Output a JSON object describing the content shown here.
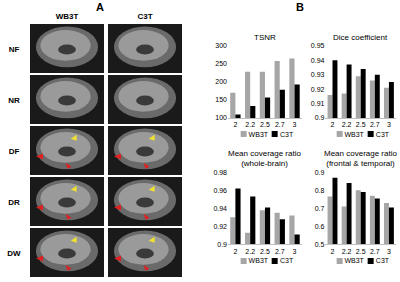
{
  "panels": {
    "A": {
      "label": "A",
      "columns": [
        "WB3T",
        "C3T"
      ],
      "rows": [
        "NF",
        "NR",
        "DF",
        "DR",
        "DW"
      ]
    },
    "B": {
      "label": "B"
    }
  },
  "chart_data": [
    {
      "type": "bar",
      "title": "TSNR",
      "categories": [
        "2",
        "2.2",
        "2.5",
        "2.7",
        "3"
      ],
      "series": [
        {
          "name": "WB3T",
          "color": "#a6a6a6",
          "values": [
            170,
            228,
            228,
            258,
            265
          ]
        },
        {
          "name": "C3T",
          "color": "#000000",
          "values": [
            110,
            133,
            157,
            178,
            193
          ]
        }
      ],
      "ylim": [
        100,
        300
      ],
      "yticks": [
        100,
        150,
        200,
        250,
        300
      ],
      "grid": false,
      "legend": "bottom"
    },
    {
      "type": "bar",
      "title": "Dice coefficient",
      "categories": [
        "2",
        "2.2",
        "2.5",
        "2.7",
        "3"
      ],
      "series": [
        {
          "name": "WB3T",
          "color": "#a6a6a6",
          "values": [
            0.916,
            0.917,
            0.929,
            0.926,
            0.921
          ]
        },
        {
          "name": "C3T",
          "color": "#000000",
          "values": [
            0.94,
            0.937,
            0.934,
            0.93,
            0.925
          ]
        }
      ],
      "ylim": [
        0.9,
        0.95
      ],
      "yticks": [
        0.9,
        0.91,
        0.92,
        0.93,
        0.94,
        0.95
      ],
      "grid": false,
      "legend": "bottom"
    },
    {
      "type": "bar",
      "title": "Mean coverage ratio\n(whole-brain)",
      "categories": [
        "2",
        "2.2",
        "2.5",
        "2.7",
        "3"
      ],
      "series": [
        {
          "name": "WB3T",
          "color": "#a6a6a6",
          "values": [
            0.93,
            0.913,
            0.938,
            0.935,
            0.932
          ]
        },
        {
          "name": "C3T",
          "color": "#000000",
          "values": [
            0.962,
            0.953,
            0.941,
            0.928,
            0.911
          ]
        }
      ],
      "ylim": [
        0.9,
        0.98
      ],
      "yticks": [
        0.9,
        0.92,
        0.94,
        0.96,
        0.98
      ],
      "grid": false,
      "legend": "bottom"
    },
    {
      "type": "bar",
      "title": "Mean coverage ratio\n(frontal & temporal)",
      "categories": [
        "2",
        "2.2",
        "2.5",
        "2.7",
        "3"
      ],
      "series": [
        {
          "name": "WB3T",
          "color": "#a6a6a6",
          "values": [
            0.765,
            0.71,
            0.8,
            0.77,
            0.73
          ]
        },
        {
          "name": "C3T",
          "color": "#000000",
          "values": [
            0.87,
            0.84,
            0.79,
            0.755,
            0.705
          ]
        }
      ],
      "ylim": [
        0.5,
        0.9
      ],
      "yticks": [
        0.5,
        0.6,
        0.7,
        0.8,
        0.9
      ],
      "grid": false,
      "legend": "bottom"
    }
  ]
}
